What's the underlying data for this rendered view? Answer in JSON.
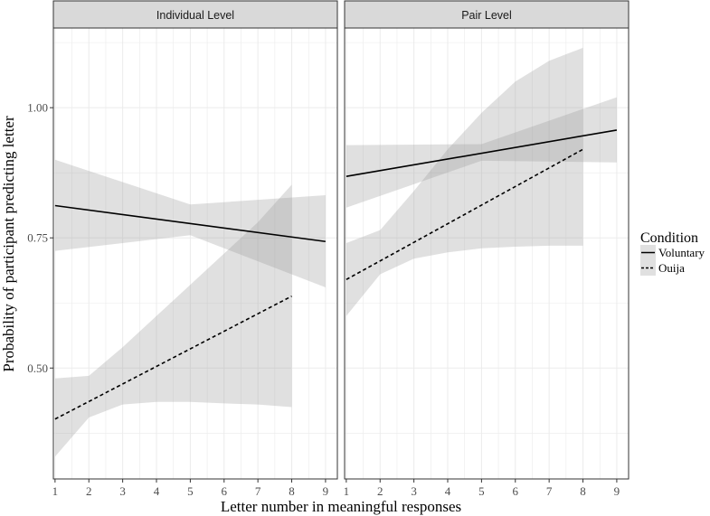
{
  "chart_data": {
    "type": "line",
    "ylabel": "Probability of participant predicting letter",
    "xlabel": "Letter number in meaningful responses",
    "xlim": [
      0.95,
      9.35
    ],
    "ylim": [
      0.287,
      1.153
    ],
    "xticks": [
      "1",
      "2",
      "3",
      "4",
      "5",
      "6",
      "7",
      "8",
      "9"
    ],
    "yticks": [
      "0.50",
      "0.75",
      "1.00"
    ],
    "ytick_values": [
      0.5,
      0.75,
      1.0
    ],
    "grid": true,
    "legend": {
      "title": "Condition",
      "position": "right",
      "entries": [
        {
          "label": "Voluntary",
          "style": "solid"
        },
        {
          "label": "Ouija",
          "style": "dashed"
        }
      ]
    },
    "colors": {
      "line": "#000000",
      "ribbon": "#999999",
      "strip_bg": "#d9d9d9",
      "grid": "#ebebeb"
    },
    "panels": [
      {
        "title": "Individual Level",
        "series": [
          {
            "name": "Voluntary",
            "style": "solid",
            "x": [
              1,
              9
            ],
            "y": [
              0.812,
              0.743
            ],
            "ribbon": {
              "x": [
                1,
                5,
                9
              ],
              "lower": [
                0.725,
                0.755,
                0.655
              ],
              "upper": [
                0.9,
                0.814,
                0.832
              ]
            }
          },
          {
            "name": "Ouija",
            "style": "dashed",
            "x": [
              1,
              8
            ],
            "y": [
              0.402,
              0.638
            ],
            "ribbon": {
              "x": [
                1,
                2,
                3,
                4,
                5,
                6,
                7,
                8
              ],
              "lower": [
                0.33,
                0.405,
                0.43,
                0.435,
                0.435,
                0.432,
                0.43,
                0.425
              ],
              "upper": [
                0.48,
                0.485,
                0.54,
                0.6,
                0.66,
                0.72,
                0.78,
                0.852
              ]
            }
          }
        ]
      },
      {
        "title": "Pair Level",
        "series": [
          {
            "name": "Voluntary",
            "style": "solid",
            "x": [
              1,
              9
            ],
            "y": [
              0.868,
              0.957
            ],
            "ribbon": {
              "x": [
                1,
                5,
                9
              ],
              "lower": [
                0.808,
                0.898,
                0.895
              ],
              "upper": [
                0.928,
                0.93,
                1.02
              ]
            }
          },
          {
            "name": "Ouija",
            "style": "dashed",
            "x": [
              1,
              8
            ],
            "y": [
              0.67,
              0.92
            ],
            "ribbon": {
              "x": [
                1,
                2,
                3,
                4,
                5,
                6,
                7,
                8
              ],
              "lower": [
                0.6,
                0.68,
                0.71,
                0.722,
                0.73,
                0.733,
                0.735,
                0.735
              ],
              "upper": [
                0.74,
                0.765,
                0.84,
                0.92,
                0.99,
                1.05,
                1.09,
                1.115
              ]
            }
          }
        ]
      }
    ]
  }
}
